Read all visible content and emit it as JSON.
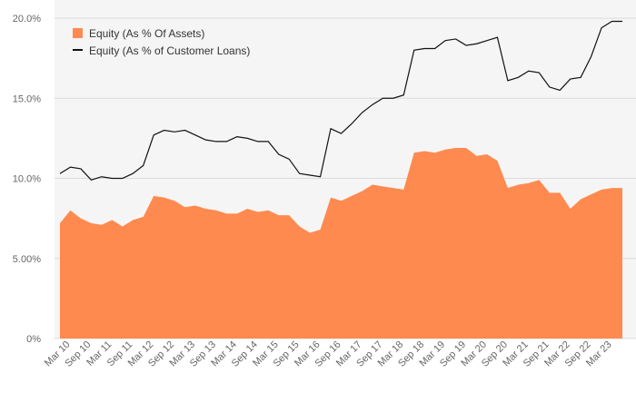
{
  "chart_data": {
    "type": "area",
    "background": "#f5f5f5",
    "grid": true,
    "legend_position": "top-left",
    "ylim": [
      0,
      20
    ],
    "y_ticks": [
      0,
      5,
      10,
      15,
      20
    ],
    "y_tick_labels": [
      "0%",
      "5.00%",
      "10.0%",
      "15.0%",
      "20.0%"
    ],
    "x_tick_labels": [
      "Mar 10",
      "Sep 10",
      "Mar 11",
      "Sep 11",
      "Mar 12",
      "Sep 12",
      "Mar 13",
      "Sep 13",
      "Mar 14",
      "Sep 14",
      "Mar 15",
      "Sep 15",
      "Mar 16",
      "Sep 16",
      "Mar 17",
      "Sep 17",
      "Mar 18",
      "Sep 18",
      "Mar 19",
      "Sep 19",
      "Mar 20",
      "Sep 20",
      "Mar 21",
      "Sep 21",
      "Mar 22",
      "Sep 22",
      "Mar 23"
    ],
    "x": [
      "Dec 09",
      "Mar 10",
      "Jun 10",
      "Sep 10",
      "Dec 10",
      "Mar 11",
      "Jun 11",
      "Sep 11",
      "Dec 11",
      "Mar 12",
      "Jun 12",
      "Sep 12",
      "Dec 12",
      "Mar 13",
      "Jun 13",
      "Sep 13",
      "Dec 13",
      "Mar 14",
      "Jun 14",
      "Sep 14",
      "Dec 14",
      "Mar 15",
      "Jun 15",
      "Sep 15",
      "Dec 15",
      "Mar 16",
      "Jun 16",
      "Sep 16",
      "Dec 16",
      "Mar 17",
      "Jun 17",
      "Sep 17",
      "Dec 17",
      "Mar 18",
      "Jun 18",
      "Sep 18",
      "Dec 18",
      "Mar 19",
      "Jun 19",
      "Sep 19",
      "Dec 19",
      "Mar 20",
      "Jun 20",
      "Sep 20",
      "Dec 20",
      "Mar 21",
      "Jun 21",
      "Sep 21",
      "Dec 21",
      "Mar 22",
      "Jun 22",
      "Sep 22",
      "Dec 22",
      "Mar 23",
      "Jun 23"
    ],
    "series": [
      {
        "name": "Equity (As % Of Assets)",
        "kind": "area",
        "color": "#ff8a50",
        "values": [
          7.2,
          8.0,
          7.5,
          7.2,
          7.1,
          7.4,
          7.0,
          7.4,
          7.6,
          8.9,
          8.8,
          8.6,
          8.2,
          8.3,
          8.1,
          8.0,
          7.8,
          7.8,
          8.1,
          7.9,
          8.0,
          7.7,
          7.7,
          7.0,
          6.6,
          6.8,
          8.8,
          8.6,
          8.9,
          9.2,
          9.6,
          9.5,
          9.4,
          9.3,
          11.6,
          11.7,
          11.6,
          11.8,
          11.9,
          11.9,
          11.4,
          11.5,
          11.1,
          9.4,
          9.6,
          9.7,
          9.9,
          9.1,
          9.1,
          8.1,
          8.7,
          9.0,
          9.3,
          9.4,
          9.4
        ]
      },
      {
        "name": "Equity (As % of Customer Loans)",
        "kind": "line",
        "color": "#111111",
        "values": [
          10.3,
          10.7,
          10.6,
          9.9,
          10.1,
          10.0,
          10.0,
          10.3,
          10.8,
          12.7,
          13.0,
          12.9,
          13.0,
          12.7,
          12.4,
          12.3,
          12.3,
          12.6,
          12.5,
          12.3,
          12.3,
          11.5,
          11.2,
          10.3,
          10.2,
          10.1,
          13.1,
          12.8,
          13.4,
          14.1,
          14.6,
          15.0,
          15.0,
          15.2,
          18.0,
          18.1,
          18.1,
          18.6,
          18.7,
          18.3,
          18.4,
          18.6,
          18.8,
          16.1,
          16.3,
          16.7,
          16.6,
          15.7,
          15.5,
          16.2,
          16.3,
          17.6,
          19.4,
          19.8,
          19.8
        ]
      }
    ]
  }
}
